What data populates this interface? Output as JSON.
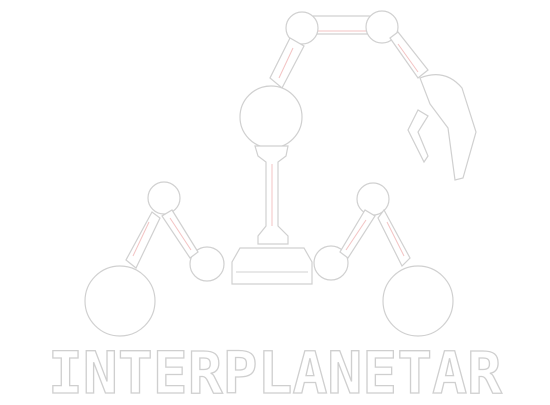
{
  "brand": {
    "wordmark": "INTERPLANETAR"
  },
  "colors": {
    "background": "#ffffff",
    "logo_fill": "#ffffff",
    "outline": "#d0d0d0",
    "accent_outline": "#f3c3c3"
  },
  "icons": {
    "robot_arm": "robot-arm-icon",
    "joint": "joint-circle-icon",
    "gripper": "gripper-icon",
    "base": "base-platform-icon"
  }
}
